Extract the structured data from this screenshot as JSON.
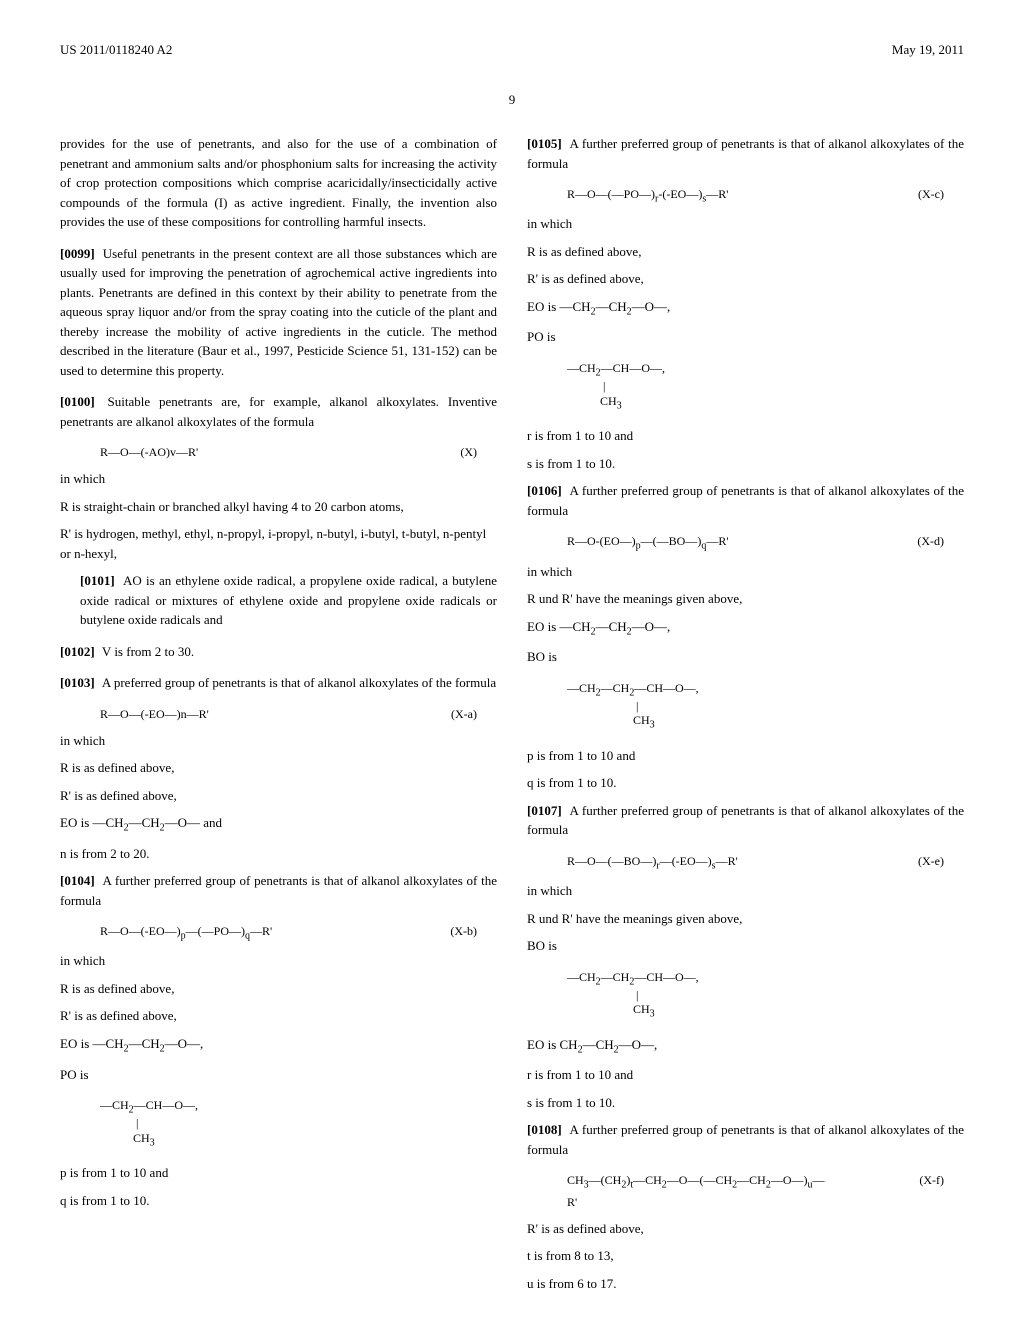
{
  "header": {
    "left": "US 2011/0118240 A2",
    "right": "May 19, 2011"
  },
  "pageNumber": "9",
  "leftColumn": {
    "intro": "provides for the use of penetrants, and also for the use of a combination of penetrant and ammonium salts and/or phosphonium salts for increasing the activity of crop protection compositions which comprise acaricidally/insecticidally active compounds of the formula (I) as active ingredient. Finally, the invention also provides the use of these compositions for controlling harmful insects.",
    "p0099": {
      "num": "[0099]",
      "text": "Useful penetrants in the present context are all those substances which are usually used for improving the penetration of agrochemical active ingredients into plants. Penetrants are defined in this context by their ability to penetrate from the aqueous spray liquor and/or from the spray coating into the cuticle of the plant and thereby increase the mobility of active ingredients in the cuticle. The method described in the literature (Baur et al., 1997, Pesticide Science 51, 131-152) can be used to determine this property."
    },
    "p0100": {
      "num": "[0100]",
      "text": "Suitable penetrants are, for example, alkanol alkoxylates. Inventive penetrants are alkanol alkoxylates of the formula"
    },
    "formula_X": {
      "formula": "R—O—(-AO)v—R'",
      "label": "(X)"
    },
    "inWhich": "in which",
    "R_def": "R is straight-chain or branched alkyl having 4 to 20 carbon atoms,",
    "Rp_def": "R' is hydrogen, methyl, ethyl, n-propyl, i-propyl, n-butyl, i-butyl, t-butyl, n-pentyl or n-hexyl,",
    "p0101": {
      "num": "[0101]",
      "text": "AO is an ethylene oxide radical, a propylene oxide radical, a butylene oxide radical or mixtures of ethylene oxide and propylene oxide radicals or butylene oxide radicals and"
    },
    "p0102": {
      "num": "[0102]",
      "text": "V is from 2 to 30."
    },
    "p0103": {
      "num": "[0103]",
      "text": "A preferred group of penetrants is that of alkanol alkoxylates of the formula"
    },
    "formula_Xa": {
      "formula": "R—O—(-EO—)n—R'",
      "label": "(X-a)"
    },
    "Xa_defs": {
      "R": "R is as defined above,",
      "Rp": "R' is as defined above,",
      "EO": "EO is —CH2—CH2—O— and",
      "n": "n is from 2 to 20."
    },
    "p0104": {
      "num": "[0104]",
      "text": "A further preferred group of penetrants is that of alkanol alkoxylates of the formula"
    },
    "formula_Xb": {
      "formula": "R—O—(-EO—)p—(—PO—)q—R'",
      "label": "(X-b)"
    },
    "Xb_defs": {
      "R": "R is as defined above,",
      "Rp": "R' is as defined above,",
      "EO": "EO is —CH2—CH2—O—,",
      "PO": "PO is"
    },
    "PO_struct": {
      "line1": "—CH2—CH—O—,",
      "line2": "|",
      "line3": "CH3"
    },
    "Xb_pq": {
      "p": "p is from 1 to 10 and",
      "q": "q is from 1 to 10."
    }
  },
  "rightColumn": {
    "p0105": {
      "num": "[0105]",
      "text": "A further preferred group of penetrants is that of alkanol alkoxylates of the formula"
    },
    "formula_Xc": {
      "formula": "R—O—(—PO—)r-(-EO—)s—R'",
      "label": "(X-c)"
    },
    "inWhich": "in which",
    "Xc_defs": {
      "R": "R is as defined above,",
      "Rp": "R' is as defined above,",
      "EO": "EO is —CH2—CH2—O—,",
      "PO": "PO is"
    },
    "PO_struct": {
      "line1": "—CH2—CH—O—,",
      "line2": "|",
      "line3": "CH3"
    },
    "Xc_rs": {
      "r": "r is from 1 to 10 and",
      "s": "s is from 1 to 10."
    },
    "p0106": {
      "num": "[0106]",
      "text": "A further preferred group of penetrants is that of alkanol alkoxylates of the formula"
    },
    "formula_Xd": {
      "formula": "R—O-(EO—)p—(—BO—)q—R'",
      "label": "(X-d)"
    },
    "Xd_defs": {
      "RRp": "R und R' have the meanings given above,",
      "EO": "EO is —CH2—CH2—O—,",
      "BO": "BO is"
    },
    "BO_struct": {
      "line1": "—CH2—CH2—CH—O—,",
      "line2": "|",
      "line3": "CH3"
    },
    "Xd_pq": {
      "p": "p is from 1 to 10 and",
      "q": "q is from 1 to 10."
    },
    "p0107": {
      "num": "[0107]",
      "text": "A further preferred group of penetrants is that of alkanol alkoxylates of the formula"
    },
    "formula_Xe": {
      "formula": "R—O—(—BO—)r—(-EO—)s—R'",
      "label": "(X-e)"
    },
    "Xe_defs": {
      "RRp": "R und R' have the meanings given above,",
      "BO": "BO is"
    },
    "BO_struct2": {
      "line1": "—CH2—CH2—CH—O—,",
      "line2": "|",
      "line3": "CH3"
    },
    "Xe_more": {
      "EO": "EO is CH2—CH2—O—,",
      "r": "r is from 1 to 10 and",
      "s": "s is from 1 to 10."
    },
    "p0108": {
      "num": "[0108]",
      "text": "A further preferred group of penetrants is that of alkanol alkoxylates of the formula"
    },
    "formula_Xf": {
      "formula": "CH3—(CH2)t—CH2—O—(—CH2—CH2—O—)u—",
      "line2": "R'",
      "label": "(X-f)"
    },
    "Xf_defs": {
      "Rp": "R' is as defined above,",
      "t": "t is from 8 to 13,",
      "u": "u is from 6 to 17."
    }
  }
}
